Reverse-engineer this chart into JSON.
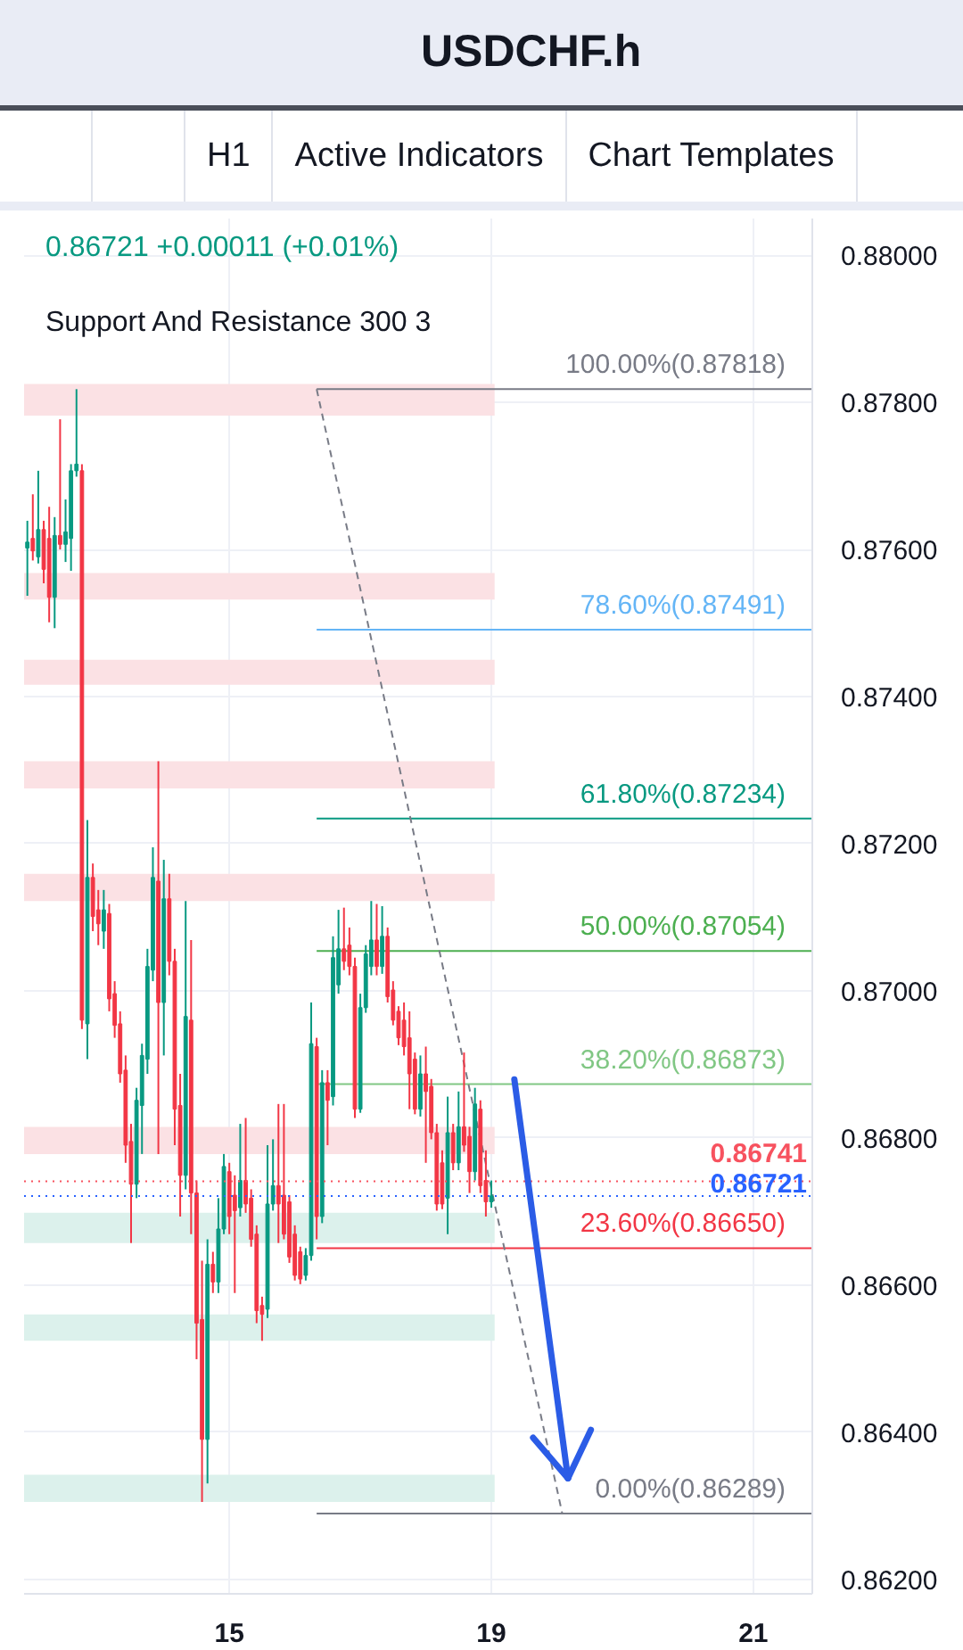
{
  "chart_data": {
    "type": "candlestick",
    "title": "USDCHF.h",
    "subtitle": "0.86721 +0.00011 (+0.01%)",
    "annotations": [
      "H1",
      "Active Indicators",
      "Chart Templates",
      "Support And Resistance 300 3"
    ],
    "categories": [
      null,
      null,
      null,
      null,
      null,
      null,
      null,
      null,
      null,
      null,
      null,
      null,
      null,
      null,
      null,
      null,
      null,
      null,
      null,
      null,
      null,
      null,
      null,
      null,
      null,
      null,
      null,
      null,
      null,
      null,
      null,
      null,
      null,
      null,
      null,
      null,
      null,
      "15",
      null,
      null,
      null,
      null,
      null,
      null,
      null,
      null,
      null,
      null,
      null,
      null,
      null,
      null,
      null,
      null,
      null,
      null,
      null,
      null,
      null,
      null,
      null,
      null,
      null,
      null,
      null,
      null,
      null,
      null,
      null,
      null,
      null,
      null,
      null,
      null,
      null,
      null,
      null,
      null,
      null,
      null,
      null,
      null,
      null,
      null,
      null,
      "19",
      null,
      null,
      null,
      null,
      null,
      null,
      null,
      null,
      null,
      null,
      null,
      null,
      null,
      null,
      null,
      null,
      null,
      null,
      null,
      null,
      null,
      null,
      null,
      null,
      null,
      null,
      null,
      null,
      null,
      null,
      null,
      null,
      null,
      null,
      null,
      null,
      null,
      null,
      null,
      null,
      null,
      null,
      null,
      null,
      null,
      null,
      null,
      "21",
      null,
      null,
      null,
      null,
      null,
      null,
      null,
      null,
      null,
      null
    ],
    "ohlc": [
      [
        0.87602,
        0.87639,
        0.87537,
        0.8761
      ],
      [
        0.87615,
        0.87675,
        0.87585,
        0.87598
      ],
      [
        0.8759,
        0.87707,
        0.87581,
        0.87627
      ],
      [
        0.87627,
        0.87639,
        0.87554,
        0.87573
      ],
      [
        0.87615,
        0.87658,
        0.87501,
        0.87535
      ],
      [
        0.87535,
        0.87644,
        0.87493,
        0.87619
      ],
      [
        0.87619,
        0.87777,
        0.876,
        0.87607
      ],
      [
        0.87607,
        0.87668,
        0.87583,
        0.87624
      ],
      [
        0.87615,
        0.87716,
        0.87571,
        0.87707
      ],
      [
        0.87707,
        0.87818,
        0.87699,
        0.87716
      ],
      [
        0.87707,
        0.87716,
        0.86948,
        0.8696
      ],
      [
        0.86955,
        0.87232,
        0.86907,
        0.87154
      ],
      [
        0.87154,
        0.87173,
        0.87081,
        0.87101
      ],
      [
        0.8711,
        0.87137,
        0.87062,
        0.87091
      ],
      [
        0.87081,
        0.87137,
        0.87057,
        0.8711
      ],
      [
        0.87105,
        0.87118,
        0.86972,
        0.86989
      ],
      [
        0.86996,
        0.87013,
        0.86936,
        0.86953
      ],
      [
        0.86955,
        0.86972,
        0.86875,
        0.86887
      ],
      [
        0.86892,
        0.86912,
        0.86766,
        0.8679
      ],
      [
        0.86795,
        0.86819,
        0.86657,
        0.86737
      ],
      [
        0.86737,
        0.86868,
        0.86718,
        0.86851
      ],
      [
        0.86844,
        0.86928,
        0.86778,
        0.86912
      ],
      [
        0.86907,
        0.87057,
        0.86887,
        0.87033
      ],
      [
        0.87028,
        0.87195,
        0.87013,
        0.87154
      ],
      [
        0.87149,
        0.87312,
        0.86778,
        0.86984
      ],
      [
        0.86984,
        0.87178,
        0.86912,
        0.87125
      ],
      [
        0.87125,
        0.87159,
        0.87021,
        0.8704
      ],
      [
        0.8704,
        0.87057,
        0.8679,
        0.86839
      ],
      [
        0.86844,
        0.86887,
        0.86693,
        0.86749
      ],
      [
        0.86749,
        0.87122,
        0.8673,
        0.86965
      ],
      [
        0.8696,
        0.87069,
        0.86669,
        0.86725
      ],
      [
        0.86725,
        0.86742,
        0.86499,
        0.86548
      ],
      [
        0.86553,
        0.86633,
        0.86305,
        0.8639
      ],
      [
        0.8639,
        0.86662,
        0.8633,
        0.86628
      ],
      [
        0.86628,
        0.86645,
        0.86589,
        0.86604
      ],
      [
        0.86604,
        0.86718,
        0.86589,
        0.86676
      ],
      [
        0.86676,
        0.86778,
        0.86669,
        0.86761
      ],
      [
        0.86754,
        0.86766,
        0.86669,
        0.86693
      ],
      [
        0.86722,
        0.86749,
        0.86589,
        0.86701
      ],
      [
        0.86705,
        0.86819,
        0.86693,
        0.86742
      ],
      [
        0.86742,
        0.86827,
        0.86698,
        0.8671
      ],
      [
        0.86718,
        0.8673,
        0.86652,
        0.86662
      ],
      [
        0.86669,
        0.86681,
        0.86548,
        0.86565
      ],
      [
        0.86572,
        0.86584,
        0.86524,
        0.8656
      ],
      [
        0.86567,
        0.8679,
        0.86555,
        0.8671
      ],
      [
        0.8671,
        0.86798,
        0.86701,
        0.86735
      ],
      [
        0.86735,
        0.86846,
        0.86657,
        0.8671
      ],
      [
        0.86722,
        0.86846,
        0.86662,
        0.86669
      ],
      [
        0.86713,
        0.86722,
        0.8663,
        0.86638
      ],
      [
        0.86669,
        0.86681,
        0.86606,
        0.86613
      ],
      [
        0.86645,
        0.86652,
        0.86601,
        0.86608
      ],
      [
        0.86613,
        0.8665,
        0.86606,
        0.8664
      ],
      [
        0.8664,
        0.86984,
        0.86633,
        0.86928
      ],
      [
        0.86924,
        0.86936,
        0.86662,
        0.86693
      ],
      [
        0.86693,
        0.86892,
        0.86684,
        0.86875
      ],
      [
        0.86875,
        0.86892,
        0.8679,
        0.86851
      ],
      [
        0.86856,
        0.87074,
        0.86844,
        0.87045
      ],
      [
        0.87008,
        0.8711,
        0.86996,
        0.87057
      ],
      [
        0.87057,
        0.87113,
        0.87028,
        0.8704
      ],
      [
        0.87062,
        0.87086,
        0.87021,
        0.87033
      ],
      [
        0.87033,
        0.87045,
        0.86827,
        0.86839
      ],
      [
        0.86839,
        0.86996,
        0.86834,
        0.86977
      ],
      [
        0.86977,
        0.87062,
        0.8697,
        0.8705
      ],
      [
        0.87033,
        0.87122,
        0.87021,
        0.87069
      ],
      [
        0.87069,
        0.87118,
        0.87021,
        0.87033
      ],
      [
        0.87033,
        0.87115,
        0.87023,
        0.87074
      ],
      [
        0.87074,
        0.87086,
        0.86984,
        0.86992
      ],
      [
        0.87001,
        0.87013,
        0.86953,
        0.8696
      ],
      [
        0.86972,
        0.86979,
        0.86926,
        0.86936
      ],
      [
        0.8696,
        0.86984,
        0.86912,
        0.86924
      ],
      [
        0.86936,
        0.86972,
        0.86839,
        0.86887
      ],
      [
        0.86907,
        0.86916,
        0.86832,
        0.86839
      ],
      [
        0.86839,
        0.86912,
        0.86829,
        0.86887
      ],
      [
        0.86887,
        0.86924,
        0.86766,
        0.86863
      ],
      [
        0.8687,
        0.8688,
        0.86798,
        0.86807
      ],
      [
        0.86807,
        0.86819,
        0.86701,
        0.8671
      ],
      [
        0.86766,
        0.86783,
        0.86703,
        0.8671
      ],
      [
        0.86718,
        0.86856,
        0.86669,
        0.86807
      ],
      [
        0.86807,
        0.86819,
        0.86756,
        0.86766
      ],
      [
        0.86766,
        0.86863,
        0.86756,
        0.86815
      ],
      [
        0.86815,
        0.86916,
        0.86781,
        0.8679
      ],
      [
        0.86802,
        0.86815,
        0.86725,
        0.86754
      ],
      [
        0.86754,
        0.86868,
        0.86742,
        0.86846
      ],
      [
        0.86839,
        0.86851,
        0.86725,
        0.86735
      ],
      [
        0.86742,
        0.86783,
        0.86693,
        0.86713
      ],
      [
        0.86713,
        0.86742,
        0.86705,
        0.86721
      ],
      null,
      null,
      null,
      null,
      null,
      null,
      null,
      null,
      null,
      null,
      null,
      null,
      null,
      null,
      null,
      null,
      null,
      null,
      null,
      null,
      null,
      null,
      null,
      null,
      null,
      null,
      null,
      null,
      null,
      null,
      null,
      null,
      null,
      null,
      null,
      null,
      null,
      null,
      null,
      null,
      null,
      null,
      null,
      null,
      null,
      null,
      null,
      null,
      null,
      null,
      null,
      null,
      null,
      null,
      null,
      null,
      null,
      null
    ],
    "colors": [
      "#089981",
      "#f23645",
      "#089981",
      "#f23645",
      "#f23645",
      "#089981",
      "#f23645",
      "#089981",
      "#089981",
      "#089981",
      "#f23645",
      "#089981",
      "#f23645",
      "#f23645",
      "#089981",
      "#f23645",
      "#f23645",
      "#f23645",
      "#f23645",
      "#f23645",
      "#089981",
      "#089981",
      "#089981",
      "#089981",
      "#f23645",
      "#089981",
      "#f23645",
      "#f23645",
      "#f23645",
      "#089981",
      "#f23645",
      "#f23645",
      "#f23645",
      "#089981",
      "#f23645",
      "#089981",
      "#089981",
      "#f23645",
      "#f23645",
      "#089981",
      "#f23645",
      "#f23645",
      "#f23645",
      "#f23645",
      "#089981",
      "#089981",
      "#f23645",
      "#f23645",
      "#f23645",
      "#f23645",
      "#f23645",
      "#089981",
      "#089981",
      "#f23645",
      "#089981",
      "#f23645",
      "#089981",
      "#089981",
      "#f23645",
      "#f23645",
      "#f23645",
      "#089981",
      "#089981",
      "#089981",
      "#f23645",
      "#089981",
      "#f23645",
      "#f23645",
      "#f23645",
      "#f23645",
      "#f23645",
      "#f23645",
      "#089981",
      "#f23645",
      "#f23645",
      "#f23645",
      "#f23645",
      "#089981",
      "#f23645",
      "#089981",
      "#f23645",
      "#f23645",
      "#089981",
      "#f23645",
      "#f23645",
      "#089981",
      null,
      null,
      null,
      null,
      null,
      null,
      null,
      null,
      null,
      null,
      null,
      null,
      null,
      null,
      null,
      null,
      null,
      null,
      null,
      null,
      null,
      null,
      null,
      null,
      null,
      null,
      null,
      null,
      null,
      null,
      null,
      null,
      null,
      null,
      null,
      null,
      null,
      null,
      null,
      null,
      null,
      null,
      null,
      null,
      null,
      null,
      null,
      null,
      null,
      null,
      null,
      null,
      null,
      null,
      null,
      null,
      null,
      null
    ],
    "series": [
      {
        "type": "line",
        "color": "#787b86",
        "line_style": "dashed",
        "values": [
          null,
          null,
          null,
          null,
          null,
          null,
          null,
          null,
          null,
          null,
          null,
          null,
          null,
          null,
          null,
          null,
          null,
          null,
          null,
          null,
          null,
          null,
          null,
          null,
          null,
          null,
          null,
          null,
          null,
          null,
          null,
          null,
          null,
          null,
          null,
          null,
          null,
          null,
          null,
          null,
          null,
          null,
          null,
          null,
          null,
          null,
          null,
          null,
          null,
          null,
          null,
          null,
          null,
          0.87818,
          null,
          null,
          null,
          null,
          null,
          null,
          null,
          null,
          null,
          null,
          null,
          null,
          null,
          null,
          null,
          null,
          null,
          null,
          null,
          null,
          null,
          null,
          null,
          null,
          null,
          null,
          null,
          null,
          null,
          null,
          null,
          null,
          null,
          null,
          null,
          null,
          null,
          null,
          null,
          null,
          null,
          null,
          null,
          null,
          0.86289,
          null,
          null,
          null,
          null,
          null,
          null,
          null,
          null,
          null,
          null,
          null,
          null,
          null,
          null,
          null,
          null,
          null,
          null,
          null,
          null,
          null,
          null,
          null,
          null,
          null,
          null,
          null,
          null,
          null,
          null,
          null,
          null,
          null,
          null,
          null,
          null,
          null,
          null,
          null,
          null,
          null,
          null,
          null,
          null,
          null
        ]
      }
    ],
    "ylim": [
      0.8618,
      0.8805
    ],
    "yticks": [
      {
        "value": 0.862,
        "label": "0.86200"
      },
      {
        "value": 0.864,
        "label": "0.86400"
      },
      {
        "value": 0.866,
        "label": "0.86600"
      },
      {
        "value": 0.868,
        "label": "0.86800"
      },
      {
        "value": 0.87,
        "label": "0.87000"
      },
      {
        "value": 0.872,
        "label": "0.87200"
      },
      {
        "value": 0.874,
        "label": "0.87400"
      },
      {
        "value": 0.876,
        "label": "0.87600"
      },
      {
        "value": 0.878,
        "label": "0.87800"
      },
      {
        "value": 0.88,
        "label": "0.88000"
      }
    ],
    "ref_lines": [
      {
        "axis": "y",
        "value": 0.87818,
        "label": "100.00%(0.87818)",
        "color": "#787b86",
        "line_style": "solid"
      },
      {
        "axis": "y",
        "value": 0.87491,
        "label": "78.60%(0.87491)",
        "color": "#64b5f6",
        "line_style": "solid"
      },
      {
        "axis": "y",
        "value": 0.87234,
        "label": "61.80%(0.87234)",
        "color": "#089981",
        "line_style": "solid"
      },
      {
        "axis": "y",
        "value": 0.87054,
        "label": "50.00%(0.87054)",
        "color": "#4caf50",
        "line_style": "solid"
      },
      {
        "axis": "y",
        "value": 0.86873,
        "label": "38.20%(0.86873)",
        "color": "#81c784",
        "line_style": "solid"
      },
      {
        "axis": "y",
        "value": 0.8665,
        "label": "23.60%(0.86650)",
        "color": "#f23645",
        "line_style": "solid"
      },
      {
        "axis": "y",
        "value": 0.86289,
        "label": "0.00%(0.86289)",
        "color": "#787b86",
        "line_style": "solid"
      },
      {
        "axis": "y",
        "value": 0.86741,
        "label": "0.86741",
        "color": "#f7525f",
        "line_style": "dotted"
      },
      {
        "axis": "y",
        "value": 0.86721,
        "label": "0.86721",
        "color": "#2962ff",
        "line_style": "dotted"
      }
    ],
    "bands": [
      {
        "axis": "y",
        "from": 0.87782,
        "to": 0.87825,
        "color": "#fbe1e4"
      },
      {
        "axis": "y",
        "from": 0.87532,
        "to": 0.87568,
        "color": "#fbe1e4"
      },
      {
        "axis": "y",
        "from": 0.87416,
        "to": 0.8745,
        "color": "#fbe1e4"
      },
      {
        "axis": "y",
        "from": 0.87275,
        "to": 0.87312,
        "color": "#fbe1e4"
      },
      {
        "axis": "y",
        "from": 0.87122,
        "to": 0.87159,
        "color": "#fbe1e4"
      },
      {
        "axis": "y",
        "from": 0.86778,
        "to": 0.86815,
        "color": "#fbe1e4"
      },
      {
        "axis": "y",
        "from": 0.86657,
        "to": 0.86698,
        "color": "#dcf1ec"
      },
      {
        "axis": "y",
        "from": 0.86524,
        "to": 0.8656,
        "color": "#dcf1ec"
      },
      {
        "axis": "y",
        "from": 0.86305,
        "to": 0.86342,
        "color": "#dcf1ec"
      }
    ],
    "grid": true
  }
}
